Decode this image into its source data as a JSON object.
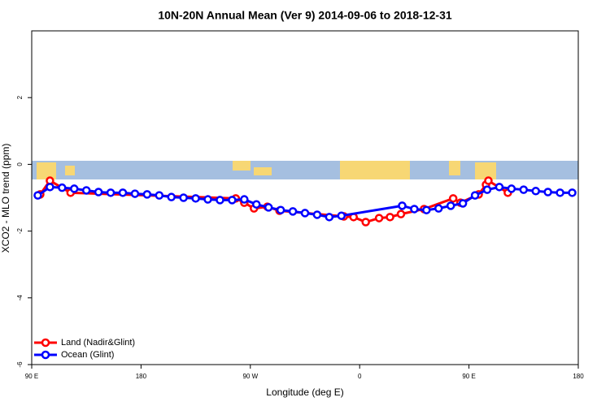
{
  "chart_data": {
    "type": "line",
    "title": "10N-20N Annual Mean (Ver 9)   2014-09-06 to 2018-12-31",
    "x_label": "Longitude (deg E)",
    "y_label": "XCO2 - MLO trend (ppm)",
    "xlim": [
      90,
      540
    ],
    "xticks": [
      {
        "value": 90,
        "label": "90 E"
      },
      180,
      {
        "value": 270,
        "label": "90 W"
      },
      {
        "value": 360,
        "label": "0"
      },
      {
        "value": 450,
        "label": "90 E"
      },
      {
        "value": 540,
        "label": "180"
      }
    ],
    "ylim": [
      -6,
      4
    ],
    "yticks": [
      -6,
      -4,
      -2,
      0,
      2
    ],
    "legend": "bottom-left",
    "series": [
      {
        "name": "Land (Nadir&Glint)",
        "color": "#ff0000",
        "x": [
          97,
          105,
          122,
          258,
          265,
          273,
          284,
          294,
          347,
          355,
          365,
          376,
          385,
          394,
          413,
          437,
          443,
          458,
          464,
          466,
          482
        ],
        "values": [
          -0.9,
          -0.49,
          -0.85,
          -1.02,
          -1.15,
          -1.32,
          -1.27,
          -1.39,
          -1.56,
          -1.58,
          -1.73,
          -1.61,
          -1.58,
          -1.49,
          -1.34,
          -1.02,
          -1.15,
          -0.9,
          -0.61,
          -0.49,
          -0.85
        ]
      },
      {
        "name": "Ocean (Glint)",
        "color": "#0000ff",
        "x": [
          95,
          105,
          115,
          125,
          135,
          145,
          155,
          165,
          175,
          185,
          195,
          205,
          215,
          225,
          235,
          245,
          255,
          265,
          275,
          285,
          295,
          305,
          315,
          325,
          335,
          345,
          395,
          405,
          415,
          425,
          435,
          445,
          455,
          465,
          475,
          485,
          495,
          505,
          515,
          525,
          535
        ],
        "values": [
          -0.93,
          -0.68,
          -0.7,
          -0.73,
          -0.78,
          -0.83,
          -0.85,
          -0.85,
          -0.88,
          -0.9,
          -0.93,
          -0.98,
          -1.0,
          -1.02,
          -1.05,
          -1.07,
          -1.07,
          -1.05,
          -1.2,
          -1.29,
          -1.37,
          -1.41,
          -1.46,
          -1.51,
          -1.58,
          -1.54,
          -1.24,
          -1.34,
          -1.37,
          -1.32,
          -1.24,
          -1.17,
          -0.93,
          -0.76,
          -0.68,
          -0.73,
          -0.76,
          -0.8,
          -0.83,
          -0.85,
          -0.85
        ]
      }
    ]
  }
}
